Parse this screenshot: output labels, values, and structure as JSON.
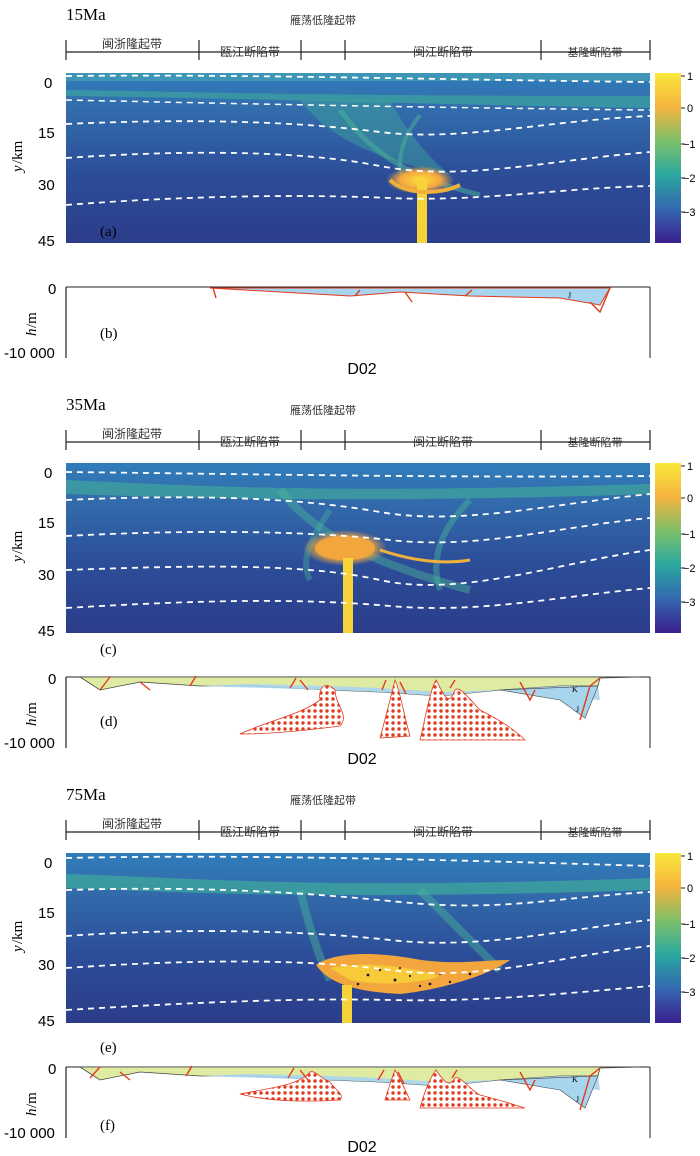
{
  "figure": {
    "belt_labels": [
      "闽浙隆起带",
      "瓯江断陷带",
      "雁荡低隆起带",
      "闽江断陷带",
      "基隆断陷带"
    ],
    "colorbar_ticks": [
      "1",
      "0",
      "−1",
      "−2",
      "−3"
    ],
    "y_axis": {
      "label": "y",
      "unit": "/km",
      "ticks": [
        "0",
        "15",
        "30",
        "45"
      ]
    },
    "h_axis": {
      "label": "h",
      "unit": "/m",
      "ticks": [
        "0",
        "-10 000"
      ]
    },
    "stratum_labels": {
      "K": "K",
      "J": "J"
    },
    "profile_name": "D02"
  },
  "panels": [
    {
      "age": "15Ma",
      "heat_label": "(a)",
      "section_label": "(b)"
    },
    {
      "age": "35Ma",
      "heat_label": "(c)",
      "section_label": "(d)"
    },
    {
      "age": "75Ma",
      "heat_label": "(e)",
      "section_label": "(f)"
    }
  ],
  "colors": {
    "mantle": "#2f4a93",
    "deep": "#2b3c8a",
    "mid": "#3f79a8",
    "green": "#3eb29a",
    "yellow": "#f7d33a",
    "orange": "#f2a93c",
    "fault": "#e23a1f",
    "water": "#a8d5ee",
    "sediment": "#dfeaa2"
  }
}
